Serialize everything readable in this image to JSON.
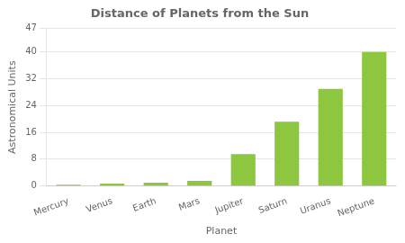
{
  "chart_data": {
    "type": "bar",
    "title": "Distance of Planets from the Sun",
    "xlabel": "Planet",
    "ylabel": "Astronomical Units",
    "categories": [
      "Mercury",
      "Venus",
      "Earth",
      "Mars",
      "Jupiter",
      "Saturn",
      "Uranus",
      "Neptune"
    ],
    "values": [
      0.39,
      0.72,
      1.0,
      1.52,
      9.5,
      19.2,
      29.0,
      40.0
    ],
    "color": "#8dc63f",
    "ylim": [
      0,
      47
    ],
    "yticks": [
      0,
      8,
      16,
      24,
      32,
      40,
      47
    ],
    "grid": true
  }
}
